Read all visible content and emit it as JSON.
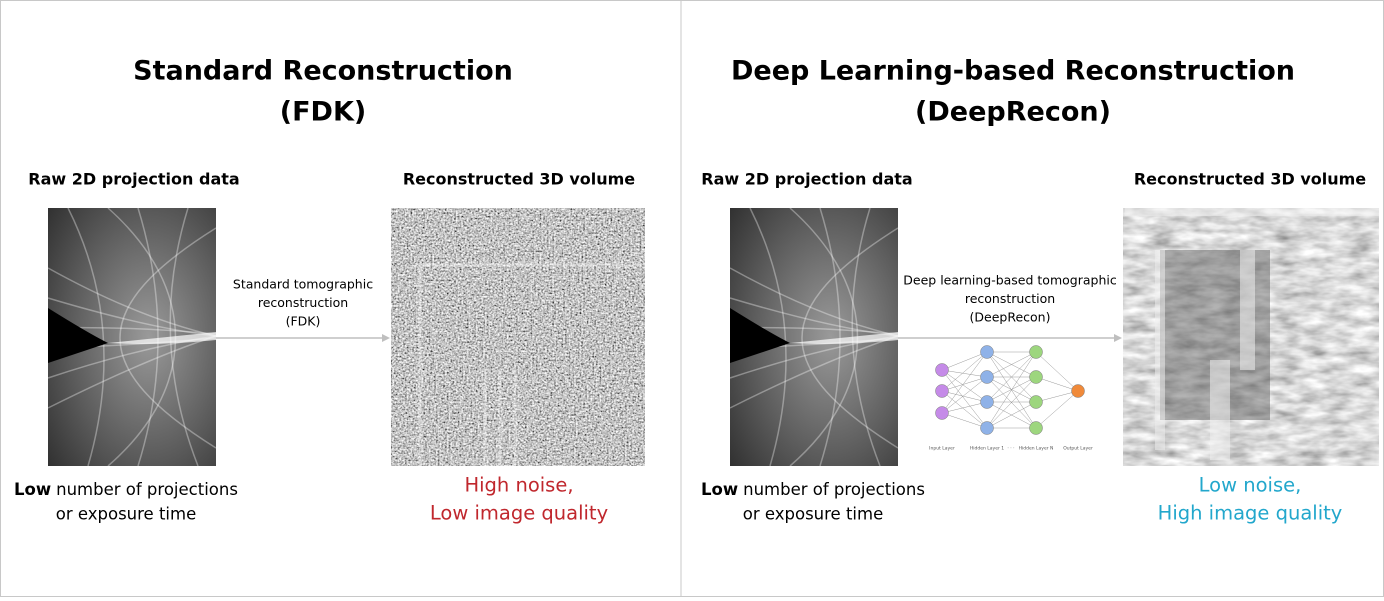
{
  "panels": [
    {
      "title": [
        "Standard Reconstruction",
        "(FDK)"
      ],
      "input_label": "Raw 2D projection data",
      "output_label": "Reconstructed 3D volume",
      "process": [
        "Standard tomographic",
        "reconstruction",
        "(FDK)"
      ],
      "footnote": {
        "bold": "Low",
        "rest": "number of projections",
        "line2": "or exposure time"
      },
      "result": [
        "High noise,",
        "Low image quality"
      ],
      "result_color": "#c0272d"
    },
    {
      "title": [
        "Deep Learning-based Reconstruction",
        "(DeepRecon)"
      ],
      "input_label": "Raw 2D projection data",
      "output_label": "Reconstructed 3D volume",
      "process": [
        "Deep learning-based tomographic",
        "reconstruction",
        "(DeepRecon)"
      ],
      "footnote": {
        "bold": "Low",
        "rest": "number of projections",
        "line2": "or exposure time"
      },
      "result": [
        "Low noise,",
        "High image quality"
      ],
      "result_color": "#22a7cc",
      "network": {
        "labels": [
          "Input Layer",
          "Hidden Layer 1",
          "Hidden Layer N",
          "Output Layer"
        ],
        "ellipsis": "· · ·"
      }
    }
  ]
}
